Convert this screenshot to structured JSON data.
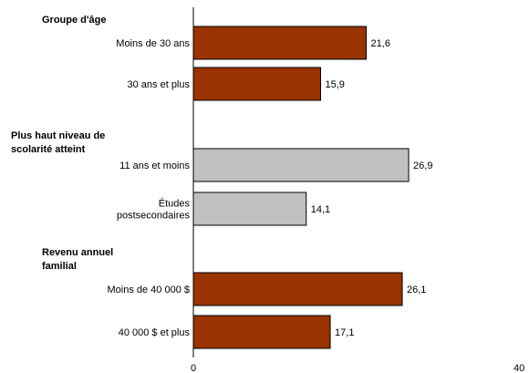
{
  "chart_data": {
    "type": "bar",
    "orientation": "horizontal",
    "xlim": [
      0,
      40
    ],
    "x_ticks": [
      "0",
      "40"
    ],
    "colors": {
      "highlight": "#993300",
      "neutral": "#c0c0c0"
    },
    "groups": [
      {
        "label_lines": [
          "Groupe d'âge"
        ],
        "bars": [
          {
            "label_lines": [
              "Moins de 30 ans"
            ],
            "value": 21.6,
            "value_label": "21,6",
            "color": "highlight"
          },
          {
            "label_lines": [
              "30 ans et plus"
            ],
            "value": 15.9,
            "value_label": "15,9",
            "color": "highlight"
          }
        ]
      },
      {
        "label_lines": [
          "Plus haut niveau de",
          "scolarité atteint"
        ],
        "bars": [
          {
            "label_lines": [
              "11 ans et moins"
            ],
            "value": 26.9,
            "value_label": "26,9",
            "color": "neutral"
          },
          {
            "label_lines": [
              "Études",
              "postsecondaires"
            ],
            "value": 14.1,
            "value_label": "14,1",
            "color": "neutral"
          }
        ]
      },
      {
        "label_lines": [
          "Revenu annuel",
          "familial"
        ],
        "bars": [
          {
            "label_lines": [
              "Moins de 40 000 $"
            ],
            "value": 26.1,
            "value_label": "26,1",
            "color": "highlight"
          },
          {
            "label_lines": [
              "40 000 $ et plus"
            ],
            "value": 17.1,
            "value_label": "17,1",
            "color": "highlight"
          }
        ]
      }
    ]
  }
}
